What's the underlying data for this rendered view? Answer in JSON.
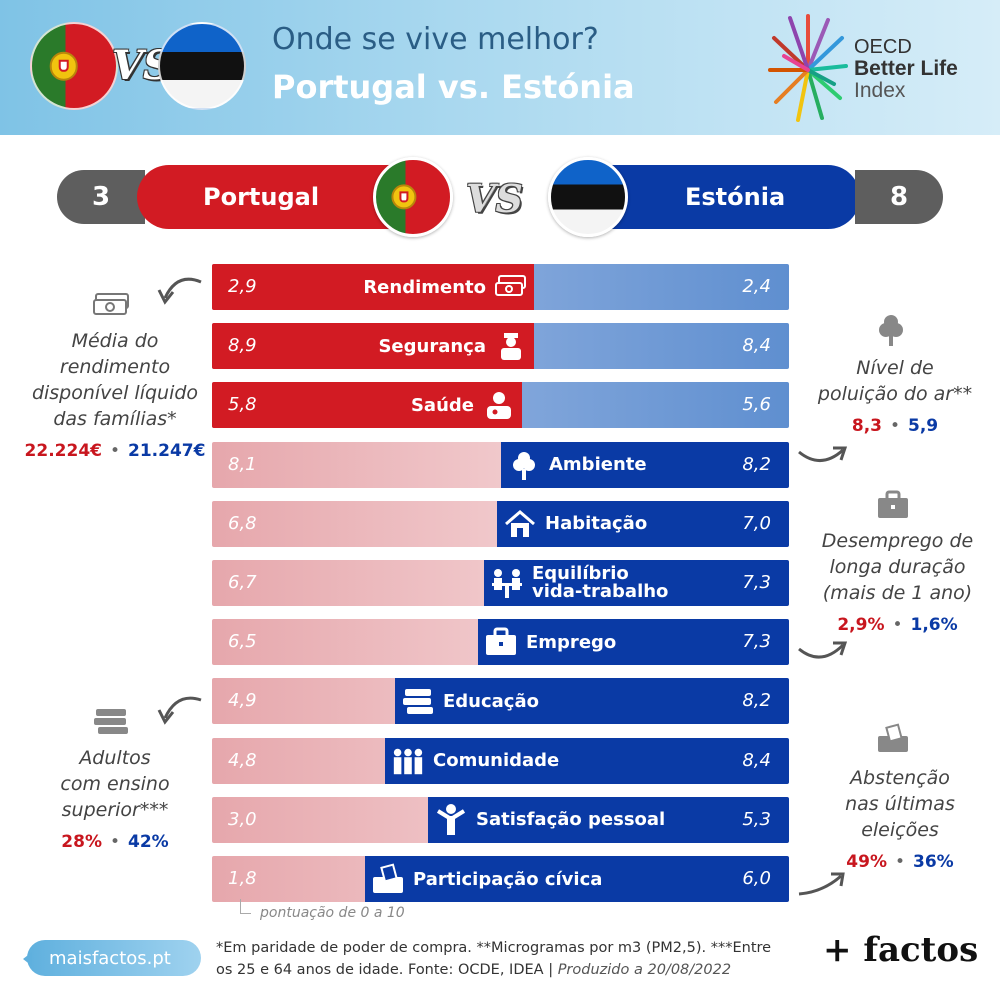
{
  "header": {
    "title_line1": "Onde se vive melhor?",
    "title_line2": "Portugal vs. Estónia",
    "vs": "VS",
    "logo": {
      "line1": "OECD",
      "line2": "Better Life",
      "line3": "Index"
    }
  },
  "scoreboard": {
    "portugal": {
      "name": "Portugal",
      "score": "3"
    },
    "estonia": {
      "name": "Estónia",
      "score": "8"
    },
    "vs": "VS"
  },
  "categories": [
    {
      "label": "Rendimento",
      "pt": "2,9",
      "ee": "2,4",
      "winner": "pt",
      "icon": "money-icon"
    },
    {
      "label": "Segurança",
      "pt": "8,9",
      "ee": "8,4",
      "winner": "pt",
      "icon": "police-icon"
    },
    {
      "label": "Saúde",
      "pt": "5,8",
      "ee": "5,6",
      "winner": "pt",
      "icon": "doctor-icon"
    },
    {
      "label": "Ambiente",
      "pt": "8,1",
      "ee": "8,2",
      "winner": "ee",
      "icon": "tree-icon"
    },
    {
      "label": "Habitação",
      "pt": "6,8",
      "ee": "7,0",
      "winner": "ee",
      "icon": "house-icon"
    },
    {
      "label": "Equilíbrio vida-trabalho",
      "line1": "Equilíbrio",
      "line2": "vida-trabalho",
      "pt": "6,7",
      "ee": "7,3",
      "winner": "ee",
      "icon": "work-life-icon"
    },
    {
      "label": "Emprego",
      "pt": "6,5",
      "ee": "7,3",
      "winner": "ee",
      "icon": "briefcase-icon"
    },
    {
      "label": "Educação",
      "pt": "4,9",
      "ee": "8,2",
      "winner": "ee",
      "icon": "books-icon"
    },
    {
      "label": "Comunidade",
      "pt": "4,8",
      "ee": "8,4",
      "winner": "ee",
      "icon": "people-icon"
    },
    {
      "label": "Satisfação pessoal",
      "pt": "3,0",
      "ee": "5,3",
      "winner": "ee",
      "icon": "happy-person-icon"
    },
    {
      "label": "Participação cívica",
      "pt": "1,8",
      "ee": "6,0",
      "winner": "ee",
      "icon": "ballot-icon"
    }
  ],
  "scale_note": "pontuação de 0 a 10",
  "annotations": {
    "income": {
      "line1": "Média do",
      "line2": "rendimento",
      "line3": "disponível líquido",
      "line4": "das famílias*",
      "pt": "22.224€",
      "ee": "21.247€"
    },
    "pollution": {
      "line1": "Nível de",
      "line2": "poluição do ar**",
      "pt": "8,3",
      "ee": "5,9"
    },
    "unemployment": {
      "line1": "Desemprego de",
      "line2": "longa duração",
      "line3": "(mais de 1 ano)",
      "pt": "2,9%",
      "ee": "1,6%"
    },
    "education": {
      "line1": "Adultos",
      "line2": "com ensino",
      "line3": "superior***",
      "pt": "28%",
      "ee": "42%"
    },
    "abstention": {
      "line1": "Abstenção",
      "line2": "nas últimas",
      "line3": "eleições",
      "pt": "49%",
      "ee": "36%"
    }
  },
  "footer": {
    "site": "maisfactos.pt",
    "note": "*Em paridade de poder de compra. **Microgramas por m3 (PM2,5). ***Entre os 25 e 64 anos de idade. Fonte: OCDE, IDEA |",
    "produced": "Produzido a 20/08/2022",
    "brand": "+ factos"
  },
  "colors": {
    "portugal": "#d21b23",
    "estonia": "#0a3aa5",
    "score_bg": "#5e5e5e"
  }
}
